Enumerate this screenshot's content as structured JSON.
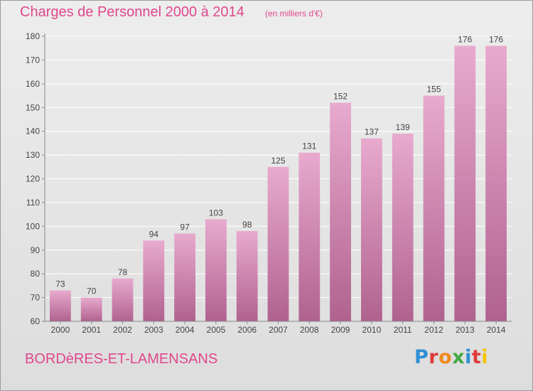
{
  "title": "Charges de Personnel 2000 à 2014",
  "subtitle": "(en milliers d'€)",
  "commune": "BORDèRES-ET-LAMENSANS",
  "brand": {
    "text": "Proxiti",
    "letter_colors": [
      "#2f8fd4",
      "#e03a3a",
      "#f08a1c",
      "#43a843",
      "#2f8fd4",
      "#e03a3a",
      "#f5c400"
    ]
  },
  "colors": {
    "title": "#e0478c",
    "bar_top": "#e8aace",
    "bar_bottom": "#b0628f",
    "axis": "#888888",
    "grid": "#ffffff",
    "label": "#444444"
  },
  "chart_data": {
    "type": "bar",
    "title": "Charges de Personnel 2000 à 2014",
    "subtitle": "(en milliers d'€)",
    "categories": [
      "2000",
      "2001",
      "2002",
      "2003",
      "2004",
      "2005",
      "2006",
      "2007",
      "2008",
      "2009",
      "2010",
      "2011",
      "2012",
      "2013",
      "2014"
    ],
    "values": [
      73,
      70,
      78,
      94,
      97,
      103,
      98,
      125,
      131,
      152,
      137,
      139,
      155,
      176,
      176
    ],
    "ylim": [
      60,
      180
    ],
    "yticks": [
      60,
      70,
      80,
      90,
      100,
      110,
      120,
      130,
      140,
      150,
      160,
      170,
      180
    ],
    "grid": true,
    "data_labels": true
  }
}
